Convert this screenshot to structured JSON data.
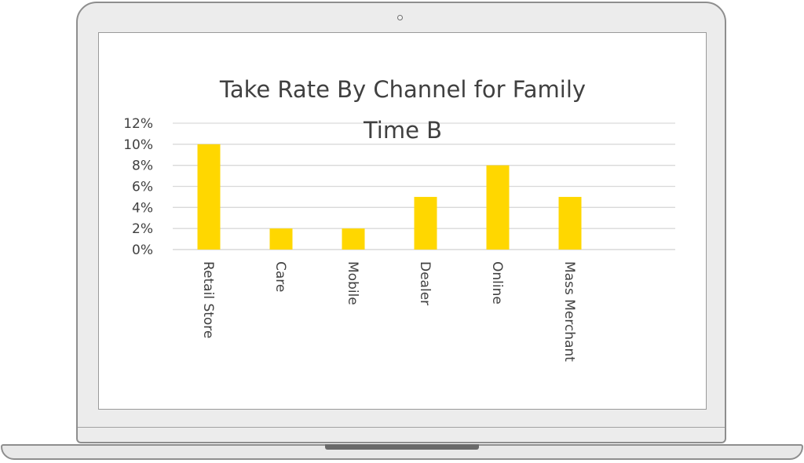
{
  "chart_data": {
    "type": "bar",
    "title": "Take Rate By Channel for Family Time B",
    "categories": [
      "Retail Store",
      "Care",
      "Mobile",
      "Dealer",
      "Online",
      "Mass Merchant"
    ],
    "values": [
      10,
      2,
      2,
      5,
      8,
      5
    ],
    "y_tick_labels": [
      "12%",
      "10%",
      "8%",
      "6%",
      "4%",
      "2%",
      "0%"
    ],
    "ylim": [
      0,
      12
    ],
    "y_unit": "%",
    "grid": true,
    "legend": "none",
    "x_label_orientation": "vertical",
    "bar_color": "#FFD700",
    "grid_color": "#D9D9D9",
    "text_color": "#404040"
  }
}
